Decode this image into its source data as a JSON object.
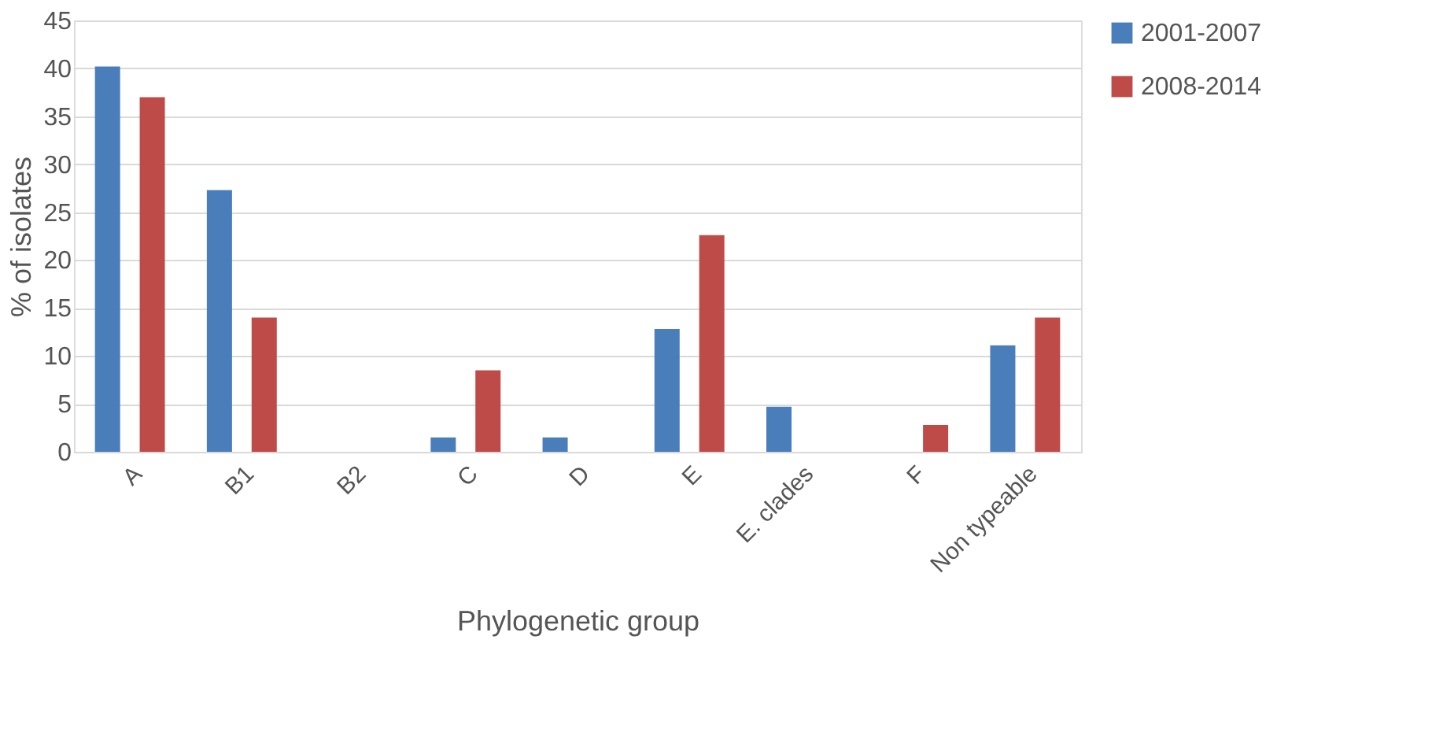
{
  "chart_data": {
    "type": "bar",
    "xlabel": "Phylogenetic group",
    "ylabel": "% of isolates",
    "categories": [
      "A",
      "B1",
      "B2",
      "C",
      "D",
      "E",
      "E. clades",
      "F",
      "Non typeable"
    ],
    "series": [
      {
        "name": "2001-2007",
        "color": "#4a7ebb",
        "values": [
          40.2,
          27.3,
          0,
          1.5,
          1.5,
          12.8,
          4.7,
          0,
          11.1
        ]
      },
      {
        "name": "2008-2014",
        "color": "#be4b48",
        "values": [
          37.0,
          14.0,
          0,
          8.5,
          0,
          22.6,
          0,
          2.8,
          14.0
        ]
      }
    ],
    "ylim": [
      0,
      45
    ],
    "yticks": [
      0,
      5,
      10,
      15,
      20,
      25,
      30,
      35,
      40,
      45
    ],
    "grid": "y",
    "legend": "right"
  }
}
